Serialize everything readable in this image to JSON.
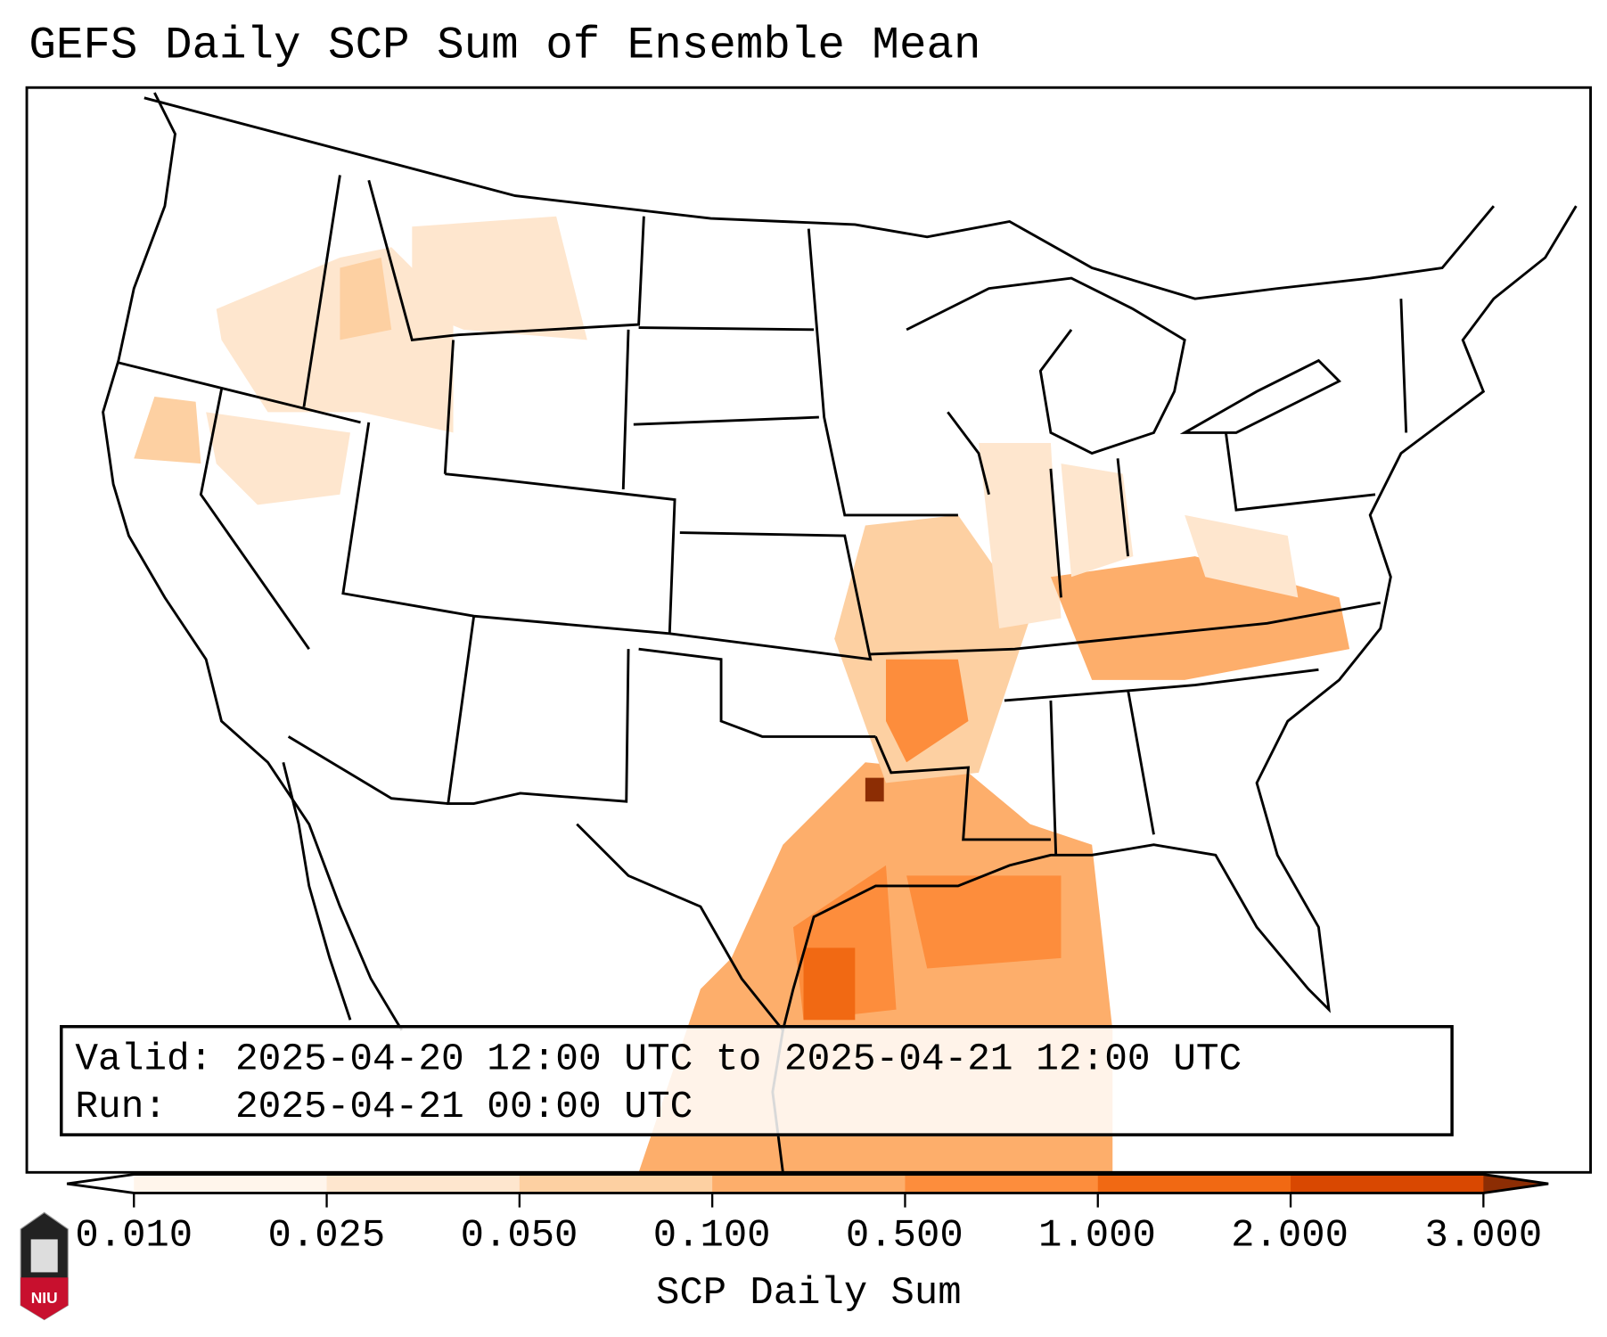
{
  "title": "GEFS Daily SCP Sum of Ensemble Mean",
  "info": {
    "valid_line": "Valid: 2025-04-20 12:00 UTC to 2025-04-21 12:00 UTC",
    "run_line": "Run:   2025-04-21 00:00 UTC"
  },
  "colorbar": {
    "label": "SCP Daily Sum",
    "ticks": [
      "0.010",
      "0.025",
      "0.050",
      "0.100",
      "0.500",
      "1.000",
      "2.000",
      "3.000"
    ],
    "colors": [
      "#fff5eb",
      "#fee6ce",
      "#fdd0a2",
      "#fdae6b",
      "#fd8d3c",
      "#f16913",
      "#d94801",
      "#8c2d04"
    ],
    "under_color": "#ffffff",
    "over_color": "#7f2704"
  },
  "logo": {
    "text": "NIU",
    "color": "#c8102e"
  }
}
